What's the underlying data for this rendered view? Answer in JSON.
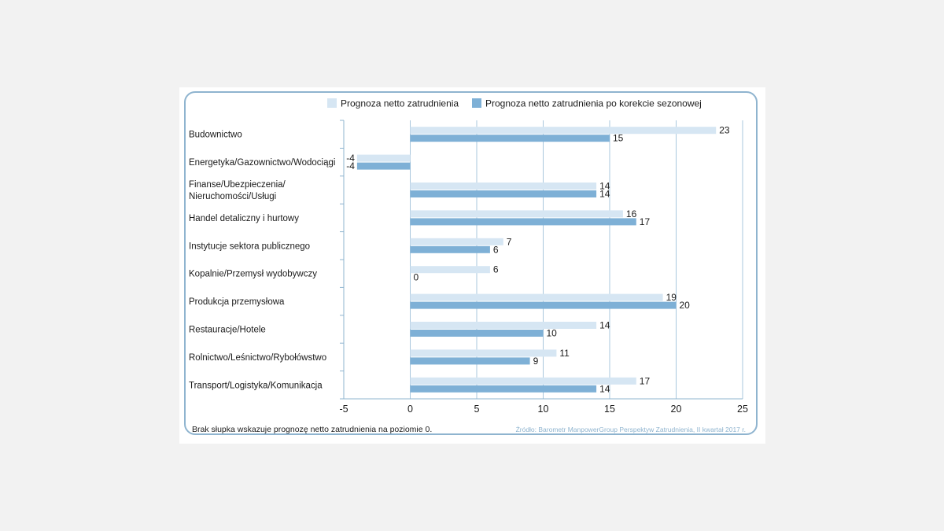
{
  "chart_data": {
    "type": "bar",
    "orientation": "horizontal",
    "categories": [
      [
        "Budownictwo"
      ],
      [
        "Energetyka/Gazownictwo/Wodociągi"
      ],
      [
        "Finanse/Ubezpieczenia/",
        "Nieruchomości/Usługi"
      ],
      [
        "Handel detaliczny i hurtowy"
      ],
      [
        "Instytucje sektora publicznego"
      ],
      [
        "Kopalnie/Przemysł wydobywczy"
      ],
      [
        "Produkcja przemysłowa"
      ],
      [
        "Restauracje/Hotele"
      ],
      [
        "Rolnictwo/Leśnictwo/Rybołówstwo"
      ],
      [
        "Transport/Logistyka/Komunikacja"
      ]
    ],
    "series": [
      {
        "name": "Prognoza netto zatrudnienia",
        "color": "#d6e6f3",
        "values": [
          23,
          -4,
          14,
          16,
          7,
          6,
          19,
          14,
          11,
          17
        ]
      },
      {
        "name": "Prognoza netto zatrudnienia po korekcie sezonowej",
        "color": "#7eb0d6",
        "values": [
          15,
          -4,
          14,
          17,
          6,
          0,
          20,
          10,
          9,
          14
        ]
      }
    ],
    "xlim": [
      -5,
      25
    ],
    "xticks": [
      -5,
      0,
      5,
      10,
      15,
      20,
      25
    ],
    "grid": true,
    "legend": "top",
    "footnote": "Brak słupka wskazuje prognozę netto zatrudnienia na poziomie 0.",
    "source": "Źródło: Barometr ManpowerGroup Perspektyw Zatrudnienia, II kwartał 2017 r."
  },
  "colors": {
    "frame": "#8fb4cf",
    "grid": "#a9c7dd",
    "axis": "#8fb4cf"
  }
}
